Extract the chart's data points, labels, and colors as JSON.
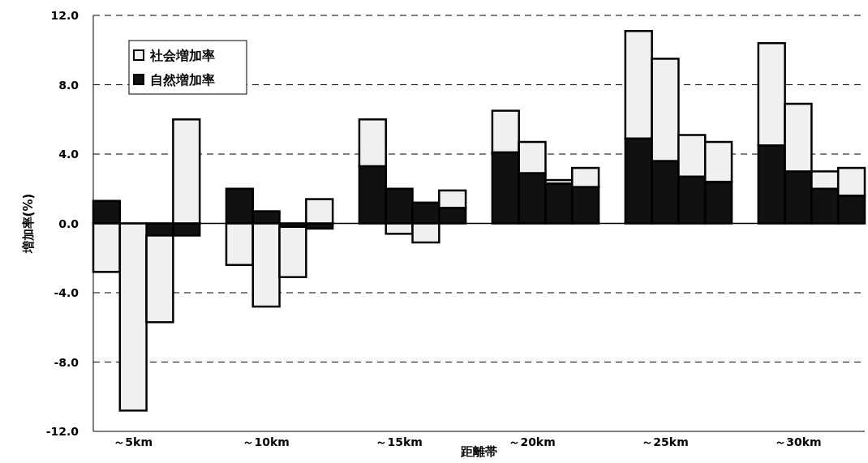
{
  "chart_data": {
    "type": "bar",
    "stacked": true,
    "xlabel": "距離帯",
    "ylabel": "増加率(%)",
    "categories": [
      null,
      "～5km",
      null,
      null,
      null,
      "～10km",
      null,
      null,
      null,
      "～15km",
      null,
      null,
      null,
      "～20km",
      null,
      null,
      null,
      "～25km",
      null,
      null,
      null,
      "～30km",
      null,
      null
    ],
    "series": [
      {
        "name": "自然増加率",
        "color": "#111111",
        "values": [
          1.3,
          null,
          -0.7,
          -0.7,
          2.0,
          0.7,
          -0.2,
          -0.3,
          3.3,
          2.0,
          1.2,
          0.9,
          4.1,
          2.9,
          2.3,
          2.1,
          4.9,
          3.6,
          2.7,
          2.4,
          4.5,
          3.0,
          2.0,
          1.6
        ]
      },
      {
        "name": "社会増加率",
        "color": "#f0f0f0",
        "values": [
          -2.8,
          -10.8,
          -5.0,
          6.0,
          -2.4,
          -4.8,
          -2.9,
          1.4,
          2.7,
          -0.6,
          -1.1,
          1.0,
          2.4,
          1.8,
          0.2,
          1.1,
          6.2,
          5.9,
          2.4,
          2.3,
          5.9,
          3.9,
          1.0,
          1.6
        ]
      }
    ],
    "ylim": [
      -12,
      12
    ],
    "yticks": [
      {
        "value": -12,
        "label": "-12.0"
      },
      {
        "value": -8,
        "label": "-8.0"
      },
      {
        "value": -4,
        "label": "-4.0"
      },
      {
        "value": 0,
        "label": "0.0"
      },
      {
        "value": 4,
        "label": "4.0"
      },
      {
        "value": 8,
        "label": "8.0"
      },
      {
        "value": 12,
        "label": "12.0"
      }
    ],
    "grid": "y",
    "legend": "top left",
    "ref_lines": [
      {
        "axis": "y",
        "value": 0,
        "line_style": "solid"
      }
    ]
  }
}
